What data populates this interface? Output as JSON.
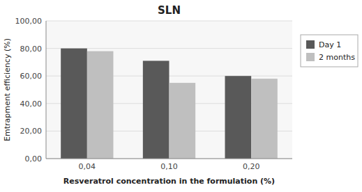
{
  "chart_data": {
    "type": "bar",
    "title": "SLN",
    "categories": [
      "0,04",
      "0,10",
      "0,20"
    ],
    "series": [
      {
        "name": "Day 1",
        "color": "#595959",
        "values": [
          80,
          71,
          60
        ]
      },
      {
        "name": "2 months",
        "color": "#BFBFBF",
        "values": [
          78,
          55,
          58
        ]
      }
    ],
    "xlabel": "Resveratrol concentration in the formulation (%)",
    "ylabel": "Emtrapment efficiency (%)",
    "ylim": [
      0,
      100
    ],
    "yticks": [
      {
        "value": 0,
        "label": "0,00"
      },
      {
        "value": 20,
        "label": "20,00"
      },
      {
        "value": 40,
        "label": "40,00"
      },
      {
        "value": 60,
        "label": "60,00"
      },
      {
        "value": 80,
        "label": "80,00"
      },
      {
        "value": 100,
        "label": "100,00"
      }
    ],
    "grid": true,
    "legend": "right"
  }
}
